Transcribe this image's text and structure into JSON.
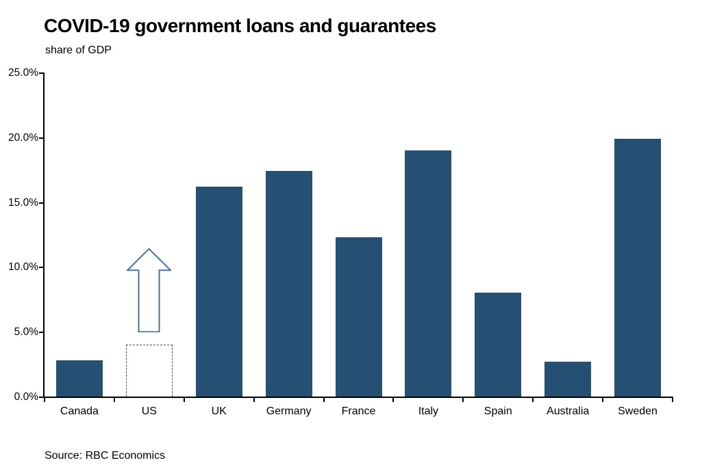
{
  "title": "COVID-19 government loans and guarantees",
  "subtitle": "share of GDP",
  "source": "Source: RBC Economics",
  "colors": {
    "bar_fill": "#254F73",
    "dashed_outline": "#3F5166",
    "arrow_outline": "#45719F",
    "arrow_fill": "#FFFFFF",
    "axis": "#000000",
    "background": "#FFFFFF",
    "text": "#000000"
  },
  "chart_data": {
    "type": "bar",
    "title": "COVID-19 government loans and guarantees",
    "subtitle": "share of GDP",
    "xlabel": "",
    "ylabel": "share of GDP",
    "categories": [
      "Canada",
      "US",
      "UK",
      "Germany",
      "France",
      "Italy",
      "Spain",
      "Australia",
      "Sweden"
    ],
    "values": [
      2.8,
      4.0,
      16.2,
      17.4,
      12.3,
      19.0,
      8.0,
      2.7,
      19.9
    ],
    "bar_styles": [
      "solid",
      "dashed",
      "solid",
      "solid",
      "solid",
      "solid",
      "solid",
      "solid",
      "solid"
    ],
    "unit": "% of GDP",
    "ylim": [
      0,
      25
    ],
    "ytick_labels": [
      "0.0%",
      "5.0%",
      "10.0%",
      "15.0%",
      "20.0%",
      "25.0%"
    ],
    "ytick_values": [
      0,
      5,
      10,
      15,
      20,
      25
    ],
    "grid": false,
    "legend": false,
    "annotations": [
      {
        "type": "up-arrow",
        "category": "US",
        "meaning": "US value expected to rise",
        "from_pct": 5.0,
        "tip_pct": 11.4,
        "head_base_pct": 9.7
      }
    ],
    "source": "Source: RBC Economics"
  }
}
